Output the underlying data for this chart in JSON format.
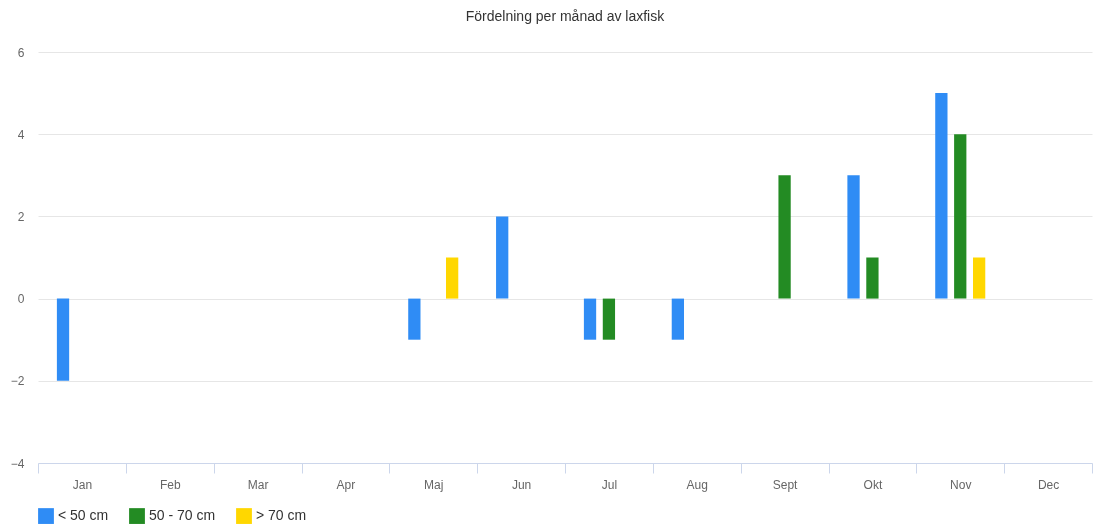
{
  "chart_data": {
    "type": "bar",
    "title": "Fördelning per månad av laxfisk",
    "categories": [
      "Jan",
      "Feb",
      "Mar",
      "Apr",
      "Maj",
      "Jun",
      "Jul",
      "Aug",
      "Sept",
      "Okt",
      "Nov",
      "Dec"
    ],
    "series": [
      {
        "name": "< 50 cm",
        "color": "#2f8cf5",
        "values": [
          -2,
          0,
          0,
          0,
          -1,
          2,
          -1,
          -1,
          0,
          3,
          5,
          0
        ]
      },
      {
        "name": "50 - 70 cm",
        "color": "#238b23",
        "values": [
          0,
          0,
          0,
          0,
          0,
          0,
          -1,
          0,
          3,
          1,
          4,
          0
        ]
      },
      {
        "name": "> 70 cm",
        "color": "#ffd700",
        "values": [
          0,
          0,
          0,
          0,
          1,
          0,
          0,
          0,
          0,
          0,
          1,
          0
        ]
      }
    ],
    "ylim": [
      -4,
      6
    ],
    "yticks": [
      {
        "value": -4,
        "label": "−4"
      },
      {
        "value": -2,
        "label": "−2"
      },
      0,
      2,
      4,
      6
    ],
    "grid": "y",
    "legend": "bottom"
  }
}
